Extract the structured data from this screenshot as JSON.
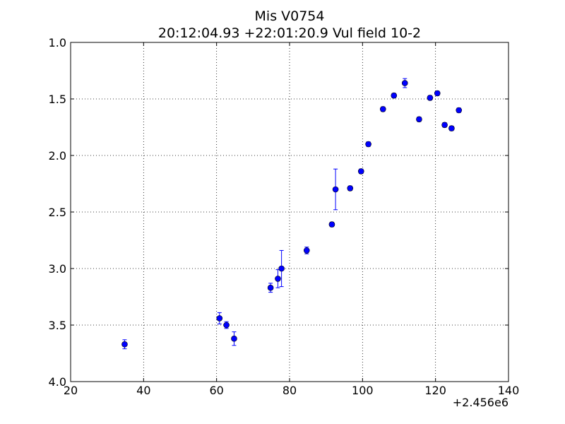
{
  "chart_data": {
    "type": "scatter",
    "title": "Mis V0754",
    "subtitle": "20:12:04.93 +22:01:20.9 Vul field 10-2",
    "xlabel": "",
    "ylabel": "",
    "x_offset_label": "+2.456e6",
    "xlim": [
      20,
      140
    ],
    "ylim": [
      1.0,
      4.0
    ],
    "y_inverted": true,
    "grid": true,
    "x_ticks": [
      20,
      40,
      60,
      80,
      100,
      120,
      140
    ],
    "x_tick_labels": [
      "20",
      "40",
      "60",
      "80",
      "100",
      "120",
      "140"
    ],
    "y_ticks": [
      1.0,
      1.5,
      2.0,
      2.5,
      3.0,
      3.5,
      4.0
    ],
    "y_tick_labels": [
      "1.0",
      "1.5",
      "2.0",
      "2.5",
      "3.0",
      "3.5",
      "4.0"
    ],
    "color": "#0000ff",
    "points": [
      {
        "x": 34.8,
        "y": 3.67,
        "err": 0.04
      },
      {
        "x": 60.8,
        "y": 3.44,
        "err": 0.05
      },
      {
        "x": 62.7,
        "y": 3.5,
        "err": 0.03
      },
      {
        "x": 64.8,
        "y": 3.62,
        "err": 0.06
      },
      {
        "x": 74.8,
        "y": 3.17,
        "err": 0.04
      },
      {
        "x": 76.8,
        "y": 3.09,
        "err": 0.08
      },
      {
        "x": 77.8,
        "y": 3.0,
        "err": 0.16
      },
      {
        "x": 84.7,
        "y": 2.84,
        "err": 0.03
      },
      {
        "x": 91.6,
        "y": 2.61,
        "err": 0.02
      },
      {
        "x": 92.6,
        "y": 2.3,
        "err": 0.18
      },
      {
        "x": 96.6,
        "y": 2.29,
        "err": 0.02
      },
      {
        "x": 99.6,
        "y": 2.14,
        "err": 0.02
      },
      {
        "x": 101.6,
        "y": 1.9,
        "err": 0.02
      },
      {
        "x": 105.6,
        "y": 1.59,
        "err": 0.02
      },
      {
        "x": 108.6,
        "y": 1.47,
        "err": 0.02
      },
      {
        "x": 111.6,
        "y": 1.36,
        "err": 0.04
      },
      {
        "x": 115.5,
        "y": 1.68,
        "err": 0.02
      },
      {
        "x": 118.5,
        "y": 1.49,
        "err": 0.02
      },
      {
        "x": 120.5,
        "y": 1.45,
        "err": 0.02
      },
      {
        "x": 122.5,
        "y": 1.73,
        "err": 0.02
      },
      {
        "x": 124.4,
        "y": 1.76,
        "err": 0.02
      },
      {
        "x": 126.4,
        "y": 1.6,
        "err": 0.02
      }
    ]
  }
}
